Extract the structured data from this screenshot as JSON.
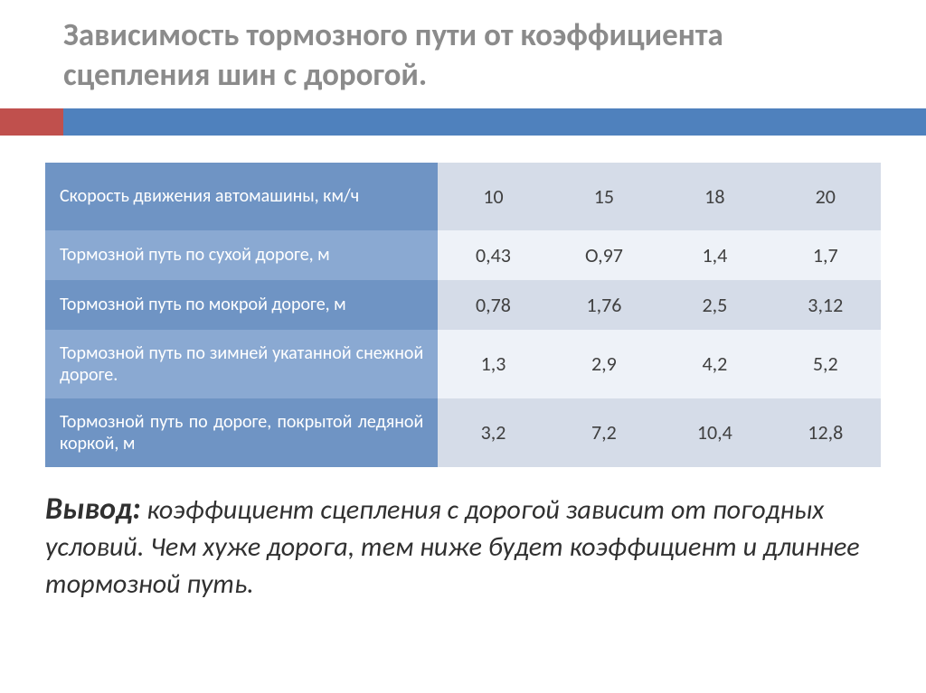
{
  "title": "Зависимость тормозного пути от коэффициента сцепления шин с дорогой.",
  "accent": {
    "left_color": "#c0504d",
    "right_color": "#4f81bd"
  },
  "table": {
    "row_colors_desc": [
      "#6f94c4",
      "#8aa9d2",
      "#6f94c4",
      "#8aa9d2",
      "#6f94c4"
    ],
    "row_colors_val": [
      "#d5dce8",
      "#eef2f8",
      "#d5dce8",
      "#eef2f8",
      "#d5dce8"
    ],
    "desc_text_color": "#ffffff",
    "val_text_color": "#404040",
    "rows": [
      {
        "label": "Скорость движения автомашины, км/ч",
        "values": [
          "10",
          "15",
          "18",
          "20"
        ]
      },
      {
        "label": "Тормозной путь по сухой дороге, м",
        "values": [
          "0,43",
          "О,97",
          "1,4",
          "1,7"
        ]
      },
      {
        "label": "Тормозной путь по мокрой дороге, м",
        "values": [
          "0,78",
          "1,76",
          "2,5",
          "3,12"
        ]
      },
      {
        "label": "Тормозной путь по зимней укатанной снежной дороге.",
        "values": [
          "1,3",
          "2,9",
          "4,2",
          "5,2"
        ]
      },
      {
        "label": "Тормозной путь по дороге, покрытой ледяной коркой, м",
        "values": [
          "3,2",
          "7,2",
          "10,4",
          "12,8"
        ]
      }
    ]
  },
  "conclusion": {
    "label": "Вывод:",
    "text": " коэффициент сцепления с дорогой зависит от погодных условий. Чем хуже дорога, тем ниже будет коэффициент и длиннее тормозной путь."
  }
}
